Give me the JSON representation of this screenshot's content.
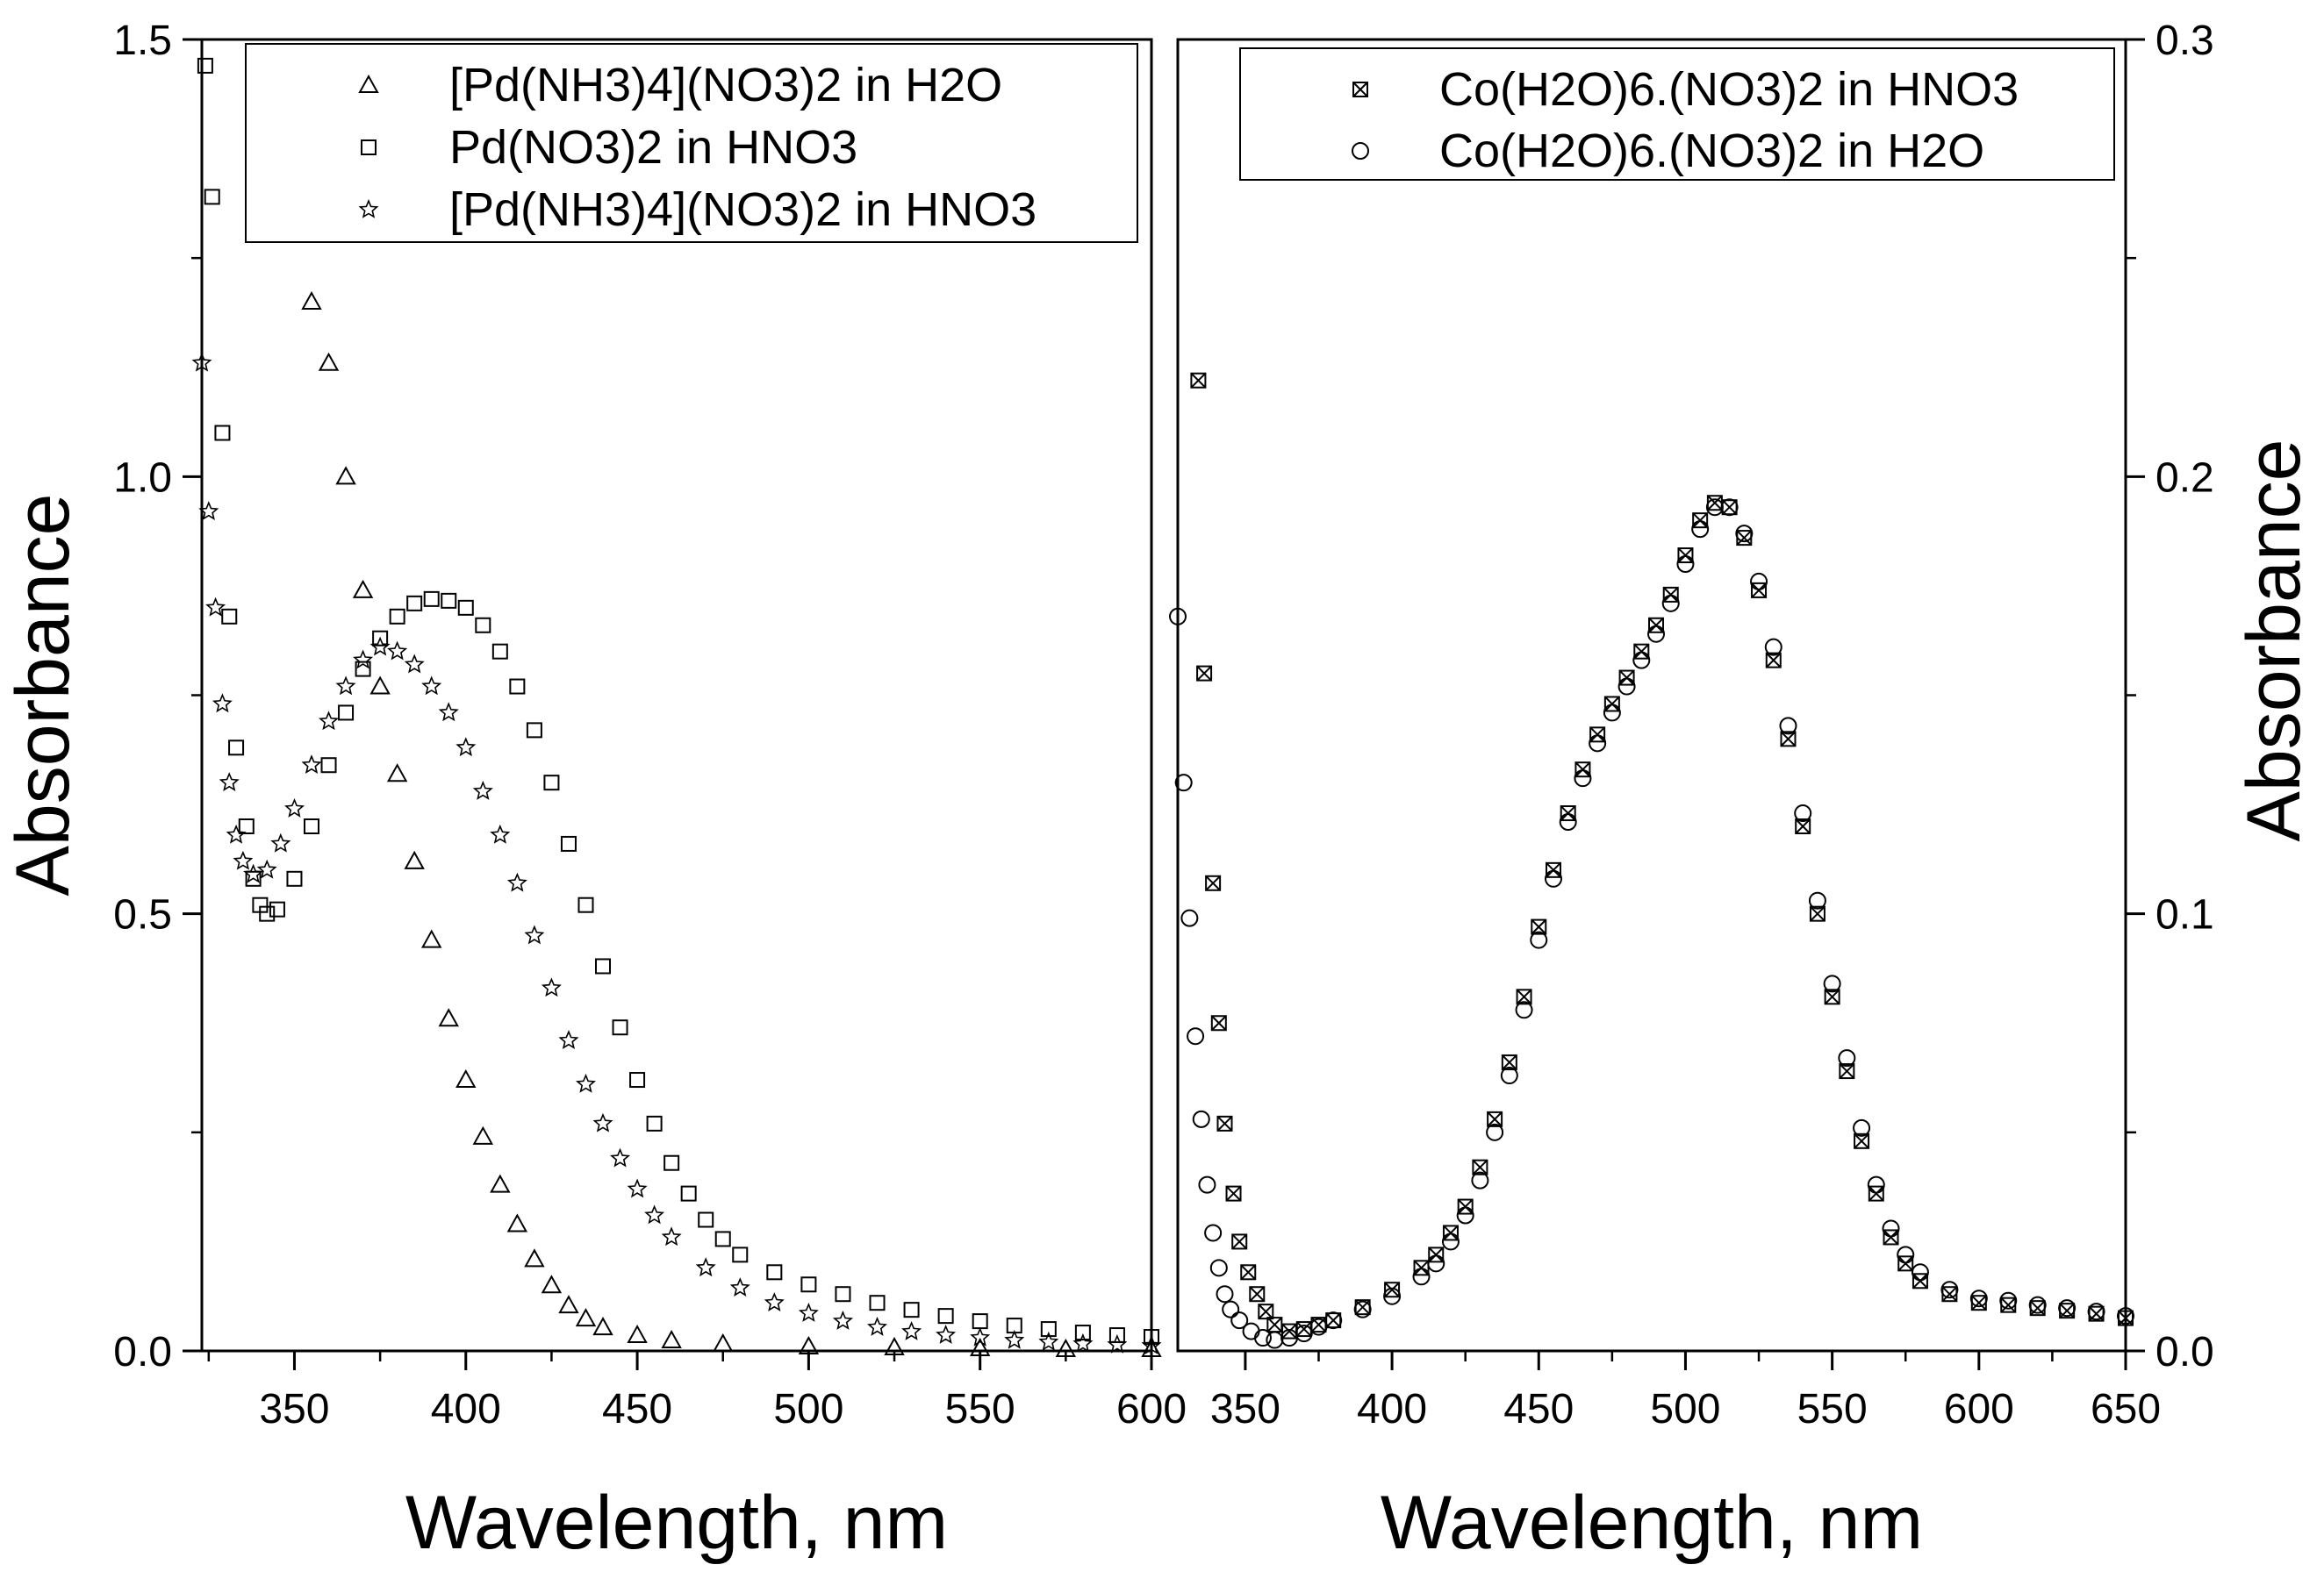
{
  "chart_data": [
    {
      "type": "scatter",
      "panel": "left",
      "xlabel": "Wavelength, nm",
      "ylabel": "Absorbance",
      "xlim": [
        323,
        600
      ],
      "ylim": [
        0,
        1.5
      ],
      "xticks": [
        350,
        400,
        450,
        500,
        550,
        600
      ],
      "xtick_labels": [
        "350",
        "400",
        "450",
        "500",
        "550",
        "600"
      ],
      "yticks": [
        0,
        0.5,
        1.0,
        1.5
      ],
      "ytick_labels": [
        "0.0",
        "0.5",
        "1.0",
        "1.5"
      ],
      "legend_position": "top-right",
      "series": [
        {
          "name": "[Pd(NH3)4](NO3)2 in H2O",
          "marker": "triangle",
          "points": [
            [
              355,
              1.2
            ],
            [
              360,
              1.13
            ],
            [
              365,
              1.0
            ],
            [
              370,
              0.87
            ],
            [
              375,
              0.76
            ],
            [
              380,
              0.66
            ],
            [
              385,
              0.56
            ],
            [
              390,
              0.47
            ],
            [
              395,
              0.38
            ],
            [
              400,
              0.31
            ],
            [
              405,
              0.245
            ],
            [
              410,
              0.19
            ],
            [
              415,
              0.145
            ],
            [
              420,
              0.105
            ],
            [
              425,
              0.075
            ],
            [
              430,
              0.052
            ],
            [
              435,
              0.037
            ],
            [
              440,
              0.027
            ],
            [
              450,
              0.018
            ],
            [
              460,
              0.012
            ],
            [
              475,
              0.008
            ],
            [
              500,
              0.005
            ],
            [
              525,
              0.004
            ],
            [
              550,
              0.003
            ],
            [
              575,
              0.002
            ],
            [
              600,
              0.002
            ]
          ]
        },
        {
          "name": "Pd(NO3)2 in HNO3",
          "marker": "square",
          "points": [
            [
              324,
              1.47
            ],
            [
              326,
              1.32
            ],
            [
              329,
              1.05
            ],
            [
              331,
              0.84
            ],
            [
              333,
              0.69
            ],
            [
              336,
              0.6
            ],
            [
              338,
              0.54
            ],
            [
              340,
              0.51
            ],
            [
              342,
              0.5
            ],
            [
              345,
              0.505
            ],
            [
              350,
              0.54
            ],
            [
              355,
              0.6
            ],
            [
              360,
              0.67
            ],
            [
              365,
              0.73
            ],
            [
              370,
              0.78
            ],
            [
              375,
              0.815
            ],
            [
              380,
              0.84
            ],
            [
              385,
              0.855
            ],
            [
              390,
              0.86
            ],
            [
              395,
              0.858
            ],
            [
              400,
              0.85
            ],
            [
              405,
              0.83
            ],
            [
              410,
              0.8
            ],
            [
              415,
              0.76
            ],
            [
              420,
              0.71
            ],
            [
              425,
              0.65
            ],
            [
              430,
              0.58
            ],
            [
              435,
              0.51
            ],
            [
              440,
              0.44
            ],
            [
              445,
              0.37
            ],
            [
              450,
              0.31
            ],
            [
              455,
              0.26
            ],
            [
              460,
              0.215
            ],
            [
              465,
              0.18
            ],
            [
              470,
              0.15
            ],
            [
              475,
              0.128
            ],
            [
              480,
              0.11
            ],
            [
              490,
              0.09
            ],
            [
              500,
              0.076
            ],
            [
              510,
              0.065
            ],
            [
              520,
              0.055
            ],
            [
              530,
              0.047
            ],
            [
              540,
              0.04
            ],
            [
              550,
              0.034
            ],
            [
              560,
              0.029
            ],
            [
              570,
              0.025
            ],
            [
              580,
              0.021
            ],
            [
              590,
              0.018
            ],
            [
              600,
              0.016
            ]
          ]
        },
        {
          "name": "[Pd(NH3)4](NO3)2 in HNO3",
          "marker": "star",
          "points": [
            [
              323,
              1.13
            ],
            [
              325,
              0.96
            ],
            [
              327,
              0.85
            ],
            [
              329,
              0.74
            ],
            [
              331,
              0.65
            ],
            [
              333,
              0.59
            ],
            [
              335,
              0.56
            ],
            [
              338,
              0.545
            ],
            [
              342,
              0.55
            ],
            [
              346,
              0.58
            ],
            [
              350,
              0.62
            ],
            [
              355,
              0.67
            ],
            [
              360,
              0.72
            ],
            [
              365,
              0.76
            ],
            [
              370,
              0.79
            ],
            [
              375,
              0.805
            ],
            [
              380,
              0.8
            ],
            [
              385,
              0.785
            ],
            [
              390,
              0.76
            ],
            [
              395,
              0.73
            ],
            [
              400,
              0.69
            ],
            [
              405,
              0.64
            ],
            [
              410,
              0.59
            ],
            [
              415,
              0.535
            ],
            [
              420,
              0.475
            ],
            [
              425,
              0.415
            ],
            [
              430,
              0.355
            ],
            [
              435,
              0.305
            ],
            [
              440,
              0.26
            ],
            [
              445,
              0.22
            ],
            [
              450,
              0.185
            ],
            [
              455,
              0.155
            ],
            [
              460,
              0.13
            ],
            [
              470,
              0.095
            ],
            [
              480,
              0.072
            ],
            [
              490,
              0.055
            ],
            [
              500,
              0.043
            ],
            [
              510,
              0.034
            ],
            [
              520,
              0.027
            ],
            [
              530,
              0.022
            ],
            [
              540,
              0.018
            ],
            [
              550,
              0.015
            ],
            [
              560,
              0.012
            ],
            [
              570,
              0.01
            ],
            [
              580,
              0.008
            ],
            [
              590,
              0.007
            ],
            [
              600,
              0.006
            ]
          ]
        }
      ]
    },
    {
      "type": "scatter",
      "panel": "right",
      "xlabel": "Wavelength, nm",
      "ylabel": "Absorbance",
      "xlim": [
        327,
        650
      ],
      "ylim": [
        0,
        0.3
      ],
      "xticks": [
        350,
        400,
        450,
        500,
        550,
        600,
        650
      ],
      "xtick_labels": [
        "350",
        "400",
        "450",
        "500",
        "550",
        "600",
        "650"
      ],
      "yticks": [
        0,
        0.1,
        0.2,
        0.3
      ],
      "ytick_labels": [
        "0.0",
        "0.1",
        "0.2",
        "0.3"
      ],
      "legend_position": "top-right",
      "series": [
        {
          "name": "Co(H2O)6.(NO3)2 in HNO3",
          "marker": "boxed-x",
          "points": [
            [
              334,
              0.222
            ],
            [
              336,
              0.155
            ],
            [
              339,
              0.107
            ],
            [
              341,
              0.075
            ],
            [
              343,
              0.052
            ],
            [
              346,
              0.036
            ],
            [
              348,
              0.025
            ],
            [
              351,
              0.018
            ],
            [
              354,
              0.013
            ],
            [
              357,
              0.009
            ],
            [
              360,
              0.006
            ],
            [
              365,
              0.0045
            ],
            [
              370,
              0.005
            ],
            [
              375,
              0.006
            ],
            [
              380,
              0.007
            ],
            [
              390,
              0.01
            ],
            [
              400,
              0.014
            ],
            [
              410,
              0.019
            ],
            [
              415,
              0.022
            ],
            [
              420,
              0.027
            ],
            [
              425,
              0.033
            ],
            [
              430,
              0.042
            ],
            [
              435,
              0.053
            ],
            [
              440,
              0.066
            ],
            [
              445,
              0.081
            ],
            [
              450,
              0.097
            ],
            [
              455,
              0.11
            ],
            [
              460,
              0.123
            ],
            [
              465,
              0.133
            ],
            [
              470,
              0.141
            ],
            [
              475,
              0.148
            ],
            [
              480,
              0.154
            ],
            [
              485,
              0.16
            ],
            [
              490,
              0.166
            ],
            [
              495,
              0.173
            ],
            [
              500,
              0.182
            ],
            [
              505,
              0.19
            ],
            [
              510,
              0.194
            ],
            [
              515,
              0.193
            ],
            [
              520,
              0.186
            ],
            [
              525,
              0.174
            ],
            [
              530,
              0.158
            ],
            [
              535,
              0.14
            ],
            [
              540,
              0.12
            ],
            [
              545,
              0.1
            ],
            [
              550,
              0.081
            ],
            [
              555,
              0.064
            ],
            [
              560,
              0.048
            ],
            [
              565,
              0.036
            ],
            [
              570,
              0.026
            ],
            [
              575,
              0.02
            ],
            [
              580,
              0.016
            ],
            [
              590,
              0.013
            ],
            [
              600,
              0.011
            ],
            [
              610,
              0.0105
            ],
            [
              620,
              0.0098
            ],
            [
              630,
              0.0092
            ],
            [
              640,
              0.0085
            ],
            [
              650,
              0.0075
            ]
          ]
        },
        {
          "name": "Co(H2O)6.(NO3)2 in H2O",
          "marker": "circle",
          "points": [
            [
              327,
              0.168
            ],
            [
              329,
              0.13
            ],
            [
              331,
              0.099
            ],
            [
              333,
              0.072
            ],
            [
              335,
              0.053
            ],
            [
              337,
              0.038
            ],
            [
              339,
              0.027
            ],
            [
              341,
              0.019
            ],
            [
              343,
              0.013
            ],
            [
              345,
              0.0095
            ],
            [
              348,
              0.007
            ],
            [
              352,
              0.0045
            ],
            [
              356,
              0.003
            ],
            [
              360,
              0.0025
            ],
            [
              365,
              0.003
            ],
            [
              370,
              0.004
            ],
            [
              375,
              0.0055
            ],
            [
              380,
              0.007
            ],
            [
              390,
              0.0095
            ],
            [
              400,
              0.0125
            ],
            [
              410,
              0.017
            ],
            [
              415,
              0.02
            ],
            [
              420,
              0.025
            ],
            [
              425,
              0.031
            ],
            [
              430,
              0.039
            ],
            [
              435,
              0.05
            ],
            [
              440,
              0.063
            ],
            [
              445,
              0.078
            ],
            [
              450,
              0.094
            ],
            [
              455,
              0.108
            ],
            [
              460,
              0.121
            ],
            [
              465,
              0.131
            ],
            [
              470,
              0.139
            ],
            [
              475,
              0.146
            ],
            [
              480,
              0.152
            ],
            [
              485,
              0.158
            ],
            [
              490,
              0.164
            ],
            [
              495,
              0.171
            ],
            [
              500,
              0.18
            ],
            [
              505,
              0.188
            ],
            [
              510,
              0.193
            ],
            [
              515,
              0.193
            ],
            [
              520,
              0.187
            ],
            [
              525,
              0.176
            ],
            [
              530,
              0.161
            ],
            [
              535,
              0.143
            ],
            [
              540,
              0.123
            ],
            [
              545,
              0.103
            ],
            [
              550,
              0.084
            ],
            [
              555,
              0.067
            ],
            [
              560,
              0.051
            ],
            [
              565,
              0.038
            ],
            [
              570,
              0.028
            ],
            [
              575,
              0.022
            ],
            [
              580,
              0.018
            ],
            [
              590,
              0.014
            ],
            [
              600,
              0.012
            ],
            [
              610,
              0.0115
            ],
            [
              620,
              0.0105
            ],
            [
              630,
              0.0098
            ],
            [
              640,
              0.009
            ],
            [
              650,
              0.008
            ]
          ]
        }
      ]
    }
  ]
}
